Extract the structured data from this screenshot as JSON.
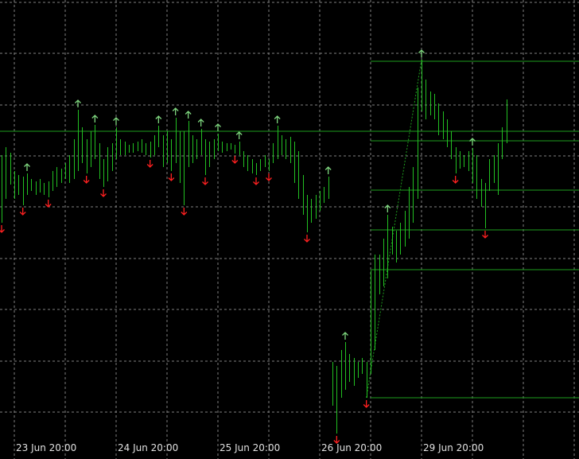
{
  "chart_data": {
    "type": "hilo",
    "xticks": [
      {
        "value": 0,
        "label": "23 Jun 20:00"
      },
      {
        "value": 24,
        "label": "24 Jun 20:00"
      },
      {
        "value": 48,
        "label": "25 Jun 20:00"
      },
      {
        "value": 72,
        "label": "26 Jun 20:00"
      },
      {
        "value": 96,
        "label": "29 Jun 20:00"
      }
    ],
    "xgrid": [
      12,
      36,
      60,
      84,
      108,
      120,
      132
    ],
    "ygrid": [
      59,
      123,
      188,
      252,
      317,
      381,
      445,
      510,
      574
    ],
    "xlim": [
      -3.375,
      133.125
    ],
    "ylim": [
      0,
      577
    ],
    "grid": true,
    "grid_color": "#808080",
    "background": "#000000",
    "series": [
      {
        "color": "#22c022",
        "x": [
          -3,
          -2,
          -1,
          0,
          1,
          2,
          3,
          4,
          5,
          6,
          7,
          8,
          9,
          10,
          11,
          12,
          13,
          14,
          15,
          16,
          17,
          18,
          19,
          20,
          21,
          22,
          23,
          24,
          25,
          26,
          27,
          28,
          29,
          30,
          31,
          32,
          33,
          34,
          35,
          36,
          37,
          38,
          39,
          40,
          41,
          42,
          43,
          44,
          45,
          46,
          47,
          48,
          49,
          50,
          51,
          52,
          53,
          54,
          55,
          56,
          57,
          58,
          59,
          60,
          61,
          62,
          63,
          64,
          65,
          66,
          67,
          68,
          69,
          70,
          71,
          72,
          73,
          74,
          75,
          76,
          77,
          78,
          79,
          80,
          81,
          82,
          83,
          84,
          85,
          86,
          87,
          88,
          89,
          90,
          91,
          92,
          93,
          94,
          95,
          96,
          97,
          98,
          99,
          100,
          101,
          102,
          103,
          104,
          105,
          106,
          107,
          108,
          109,
          110,
          111,
          112,
          113,
          114,
          115,
          116
        ],
        "high": [
          382,
          392,
          385,
          362,
          357,
          355,
          359,
          352,
          349,
          352,
          347,
          349,
          362,
          367,
          365,
          372,
          382,
          402,
          439,
          417,
          402,
          412,
          420,
          397,
          377,
          392,
          397,
          417,
          402,
          399,
          395,
          397,
          399,
          402,
          397,
          399,
          407,
          419,
          407,
          412,
          402,
          429,
          412,
          412,
          425,
          407,
          402,
          415,
          402,
          399,
          402,
          409,
          399,
          397,
          397,
          395,
          399,
          387,
          382,
          377,
          372,
          377,
          382,
          377,
          397,
          419,
          407,
          402,
          405,
          399,
          387,
          357,
          332,
          327,
          332,
          337,
          342,
          355,
          122,
          117,
          137,
          147,
          132,
          127,
          122,
          127,
          122,
          237,
          257,
          257,
          277,
          307,
          292,
          287,
          297,
          312,
          342,
          367,
          467,
          502,
          477,
          462,
          459,
          447,
          437,
          427,
          412,
          392,
          387,
          382,
          387,
          391,
          382,
          352,
          347,
          377,
          382,
          397,
          417,
          452
        ],
        "low": [
          297,
          327,
          345,
          327,
          332,
          319,
          332,
          337,
          332,
          335,
          332,
          329,
          337,
          342,
          347,
          352,
          347,
          352,
          362,
          372,
          359,
          367,
          377,
          352,
          342,
          349,
          362,
          377,
          382,
          382,
          385,
          385,
          387,
          385,
          382,
          379,
          382,
          392,
          367,
          372,
          362,
          372,
          347,
          319,
          367,
          372,
          377,
          382,
          357,
          367,
          377,
          387,
          385,
          387,
          389,
          384,
          382,
          367,
          362,
          359,
          357,
          362,
          367,
          362,
          372,
          377,
          382,
          377,
          372,
          347,
          327,
          307,
          285,
          297,
          302,
          312,
          322,
          327,
          67,
          32,
          77,
          87,
          97,
          92,
          102,
          107,
          77,
          107,
          137,
          207,
          217,
          227,
          257,
          247,
          257,
          267,
          277,
          297,
          327,
          437,
          427,
          432,
          427,
          407,
          402,
          392,
          377,
          359,
          365,
          367,
          362,
          347,
          327,
          317,
          290,
          337,
          347,
          332,
          377,
          397
        ]
      }
    ],
    "up_arrows": {
      "color": "#7fd67f",
      "x": [
        3,
        15,
        19,
        24,
        34,
        38,
        41,
        44,
        48,
        53,
        62,
        74,
        78,
        88,
        96,
        108
      ],
      "values": [
        359,
        439,
        420,
        417,
        419,
        429,
        425,
        415,
        409,
        399,
        419,
        355,
        147,
        307,
        502,
        391
      ]
    },
    "down_arrows": {
      "color": "#ff2020",
      "x": [
        -3,
        2,
        8,
        17,
        21,
        32,
        37,
        40,
        45,
        52,
        57,
        60,
        69,
        76,
        83,
        104,
        111
      ],
      "values": [
        297,
        319,
        329,
        359,
        342,
        379,
        362,
        319,
        357,
        384,
        357,
        362,
        285,
        32,
        77,
        359,
        290
      ]
    },
    "levels": {
      "color": "#1e9e1e",
      "values": [
        500,
        412,
        400,
        338,
        288,
        238,
        77
      ],
      "from": [
        84,
        -3.375,
        84,
        84,
        84,
        84,
        84
      ]
    },
    "zigzag": {
      "color": "#1e9e1e",
      "x": [
        83,
        96
      ],
      "values": [
        77,
        502
      ]
    }
  }
}
